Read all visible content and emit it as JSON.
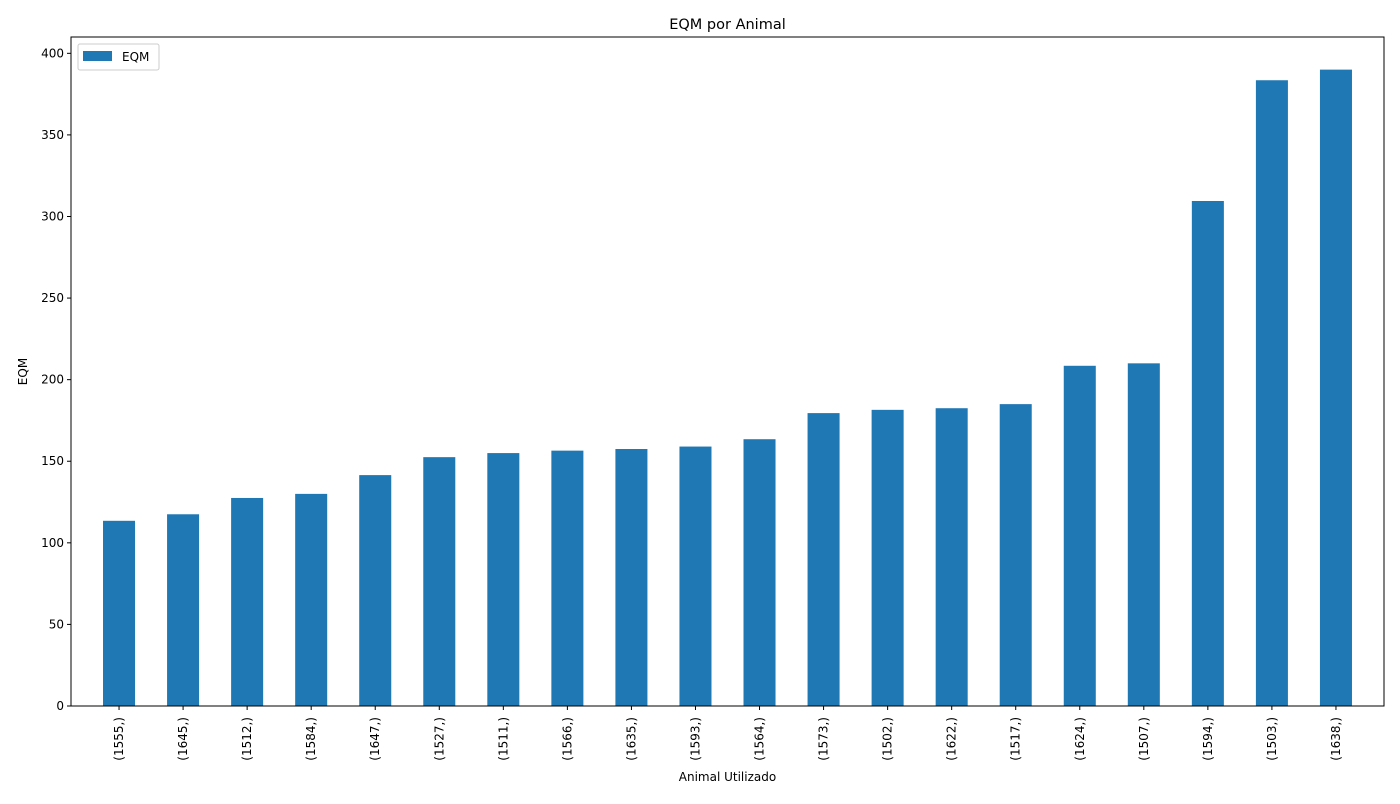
{
  "chart_data": {
    "type": "bar",
    "title": "EQM por Animal",
    "xlabel": "Animal Utilizado",
    "ylabel": "EQM",
    "categories": [
      "(1555,)",
      "(1645,)",
      "(1512,)",
      "(1584,)",
      "(1647,)",
      "(1527,)",
      "(1511,)",
      "(1566,)",
      "(1635,)",
      "(1593,)",
      "(1564,)",
      "(1573,)",
      "(1502,)",
      "(1622,)",
      "(1517,)",
      "(1624,)",
      "(1507,)",
      "(1594,)",
      "(1503,)",
      "(1638,)"
    ],
    "series": [
      {
        "name": "EQM",
        "color": "#1f77b4",
        "values": [
          113.5,
          117.5,
          127.5,
          130,
          141.5,
          152.5,
          155,
          156.5,
          157.5,
          159,
          163.5,
          179.5,
          181.5,
          182.5,
          185,
          208.5,
          210,
          309.5,
          383.5,
          390
        ]
      }
    ],
    "ylim": [
      0,
      410
    ],
    "yticks": [
      0,
      50,
      100,
      150,
      200,
      250,
      300,
      350,
      400
    ],
    "legend": "upper-left",
    "grid": false
  }
}
